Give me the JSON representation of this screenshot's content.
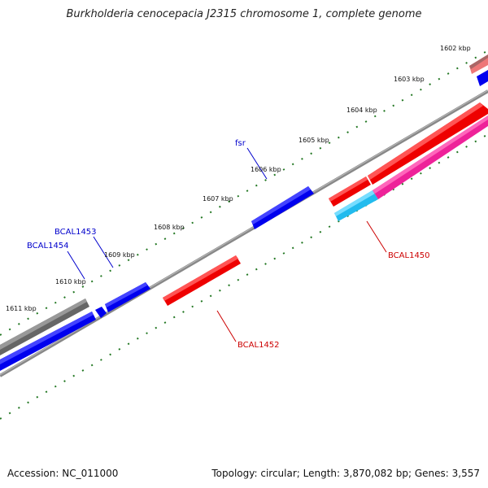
{
  "title": "Burkholderia cenocepacia J2315 chromosome 1, complete genome",
  "footer": {
    "accession": "Accession: NC_011000",
    "summary": "Topology: circular; Length: 3,870,082 bp; Genes: 3,557"
  },
  "ticks": [
    "1602 kbp",
    "1603 kbp",
    "1604 kbp",
    "1605 kbp",
    "1606 kbp",
    "1607 kbp",
    "1608 kbp",
    "1609 kbp",
    "1610 kbp",
    "1611 kbp"
  ],
  "gene_labels": [
    {
      "name": "fsr",
      "color": "#0000cc"
    },
    {
      "name": "BCAL1453",
      "color": "#0000cc"
    },
    {
      "name": "BCAL1454",
      "color": "#0000cc"
    },
    {
      "name": "BCAL1450",
      "color": "#cc0000"
    },
    {
      "name": "BCAL1452",
      "color": "#cc0000"
    }
  ],
  "colors": {
    "backbone": "#888888",
    "blue_gene": "#0000ee",
    "red_gene": "#ee0000",
    "gray_gene": "#666666",
    "pink_gene": "#ee2299",
    "cyan_gene": "#22bbee",
    "salmon_gene": "#ee7777",
    "tick_dots": "#227722"
  }
}
